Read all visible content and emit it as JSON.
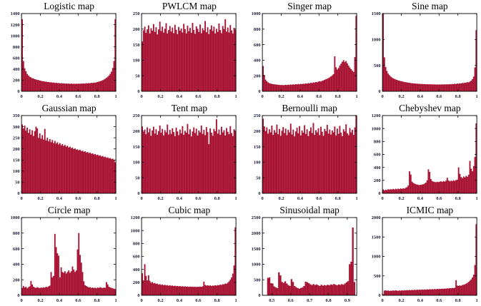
{
  "figure": {
    "background": "#ffffff",
    "bar_color": "#A91535",
    "axis_color": "#000000",
    "label_color": "#202038",
    "grid": false,
    "legend": false
  },
  "chart_data": [
    {
      "type": "bar",
      "title": "Logistic map",
      "xlim": [
        0,
        1
      ],
      "ylim": [
        0,
        1400
      ],
      "x_ticks": [
        0,
        0.2,
        0.4,
        0.6,
        0.8,
        1
      ],
      "x_tick_labels": [
        "0",
        "0.2",
        "0.4",
        "0.6",
        "0.8",
        "1"
      ],
      "y_ticks": [
        0,
        200,
        400,
        600,
        800,
        1000,
        1200,
        1400
      ],
      "y_tick_labels": [
        "0",
        "200",
        "400",
        "600",
        "800",
        "1000",
        "1200",
        "1400"
      ],
      "values": [
        1300,
        545,
        415,
        360,
        312,
        285,
        262,
        250,
        236,
        230,
        218,
        214,
        204,
        202,
        192,
        190,
        182,
        181,
        174,
        174,
        167,
        168,
        161,
        163,
        156,
        158,
        151,
        154,
        147,
        150,
        144,
        147,
        141,
        144,
        138,
        142,
        136,
        140,
        134,
        139,
        133,
        138,
        133,
        138,
        134,
        139,
        135,
        141,
        137,
        143,
        139,
        146,
        142,
        149,
        145,
        153,
        149,
        157,
        153,
        162,
        168,
        175,
        182,
        190,
        200,
        212,
        226,
        243,
        262,
        285,
        315,
        355,
        420,
        545,
        1300
      ]
    },
    {
      "type": "bar",
      "title": "PWLCM map",
      "xlim": [
        0,
        1
      ],
      "ylim": [
        0,
        250
      ],
      "x_ticks": [
        0,
        0.2,
        0.4,
        0.6,
        0.8,
        1
      ],
      "x_tick_labels": [
        "0",
        "0.2",
        "0.4",
        "0.6",
        "0.8",
        "1"
      ],
      "y_ticks": [
        0,
        50,
        100,
        150,
        200,
        250
      ],
      "y_tick_labels": [
        "0",
        "50",
        "100",
        "150",
        "200",
        "250"
      ],
      "values": [
        160,
        196,
        208,
        188,
        199,
        212,
        186,
        203,
        195,
        216,
        191,
        206,
        183,
        199,
        224,
        194,
        208,
        189,
        201,
        219,
        186,
        197,
        210,
        192,
        205,
        187,
        214,
        198,
        184,
        207,
        195,
        202,
        189,
        217,
        200,
        186,
        211,
        193,
        204,
        188,
        220,
        197,
        185,
        209,
        201,
        191,
        215,
        187,
        203,
        196,
        226,
        190,
        206,
        184,
        199,
        212,
        194,
        208,
        186,
        201,
        191,
        218,
        197,
        187,
        210,
        200,
        232,
        192,
        205,
        189,
        213,
        196,
        186,
        204,
        198
      ]
    },
    {
      "type": "bar",
      "title": "Singer map",
      "xlim": [
        0,
        1
      ],
      "ylim": [
        0,
        1000
      ],
      "x_ticks": [
        0,
        0.2,
        0.4,
        0.6,
        0.8,
        1
      ],
      "x_tick_labels": [
        "0",
        "0.2",
        "0.4",
        "0.6",
        "0.8",
        "1"
      ],
      "y_ticks": [
        0,
        200,
        400,
        600,
        800,
        1000
      ],
      "y_tick_labels": [
        "0",
        "200",
        "400",
        "600",
        "800",
        "1000"
      ],
      "values": [
        325,
        210,
        150,
        130,
        115,
        105,
        100,
        95,
        92,
        90,
        88,
        85,
        84,
        82,
        80,
        82,
        78,
        80,
        84,
        80,
        85,
        82,
        88,
        84,
        90,
        86,
        92,
        88,
        94,
        90,
        96,
        92,
        98,
        95,
        102,
        98,
        106,
        102,
        110,
        106,
        115,
        112,
        120,
        116,
        125,
        130,
        126,
        135,
        140,
        148,
        155,
        162,
        170,
        180,
        192,
        205,
        220,
        450,
        310,
        280,
        300,
        330,
        355,
        380,
        400,
        375,
        390,
        360,
        330,
        305,
        285,
        265,
        250,
        440,
        970
      ]
    },
    {
      "type": "bar",
      "title": "Sine map",
      "xlim": [
        0,
        1
      ],
      "ylim": [
        0,
        1500
      ],
      "x_ticks": [
        0,
        0.2,
        0.4,
        0.6,
        0.8,
        1
      ],
      "x_tick_labels": [
        "0",
        "0.2",
        "0.4",
        "0.6",
        "0.8",
        "1"
      ],
      "y_ticks": [
        0,
        500,
        1000,
        1500
      ],
      "y_tick_labels": [
        "0",
        "500",
        "1000",
        "1500"
      ],
      "values": [
        1500,
        655,
        470,
        392,
        342,
        312,
        286,
        266,
        250,
        240,
        228,
        220,
        210,
        204,
        196,
        192,
        184,
        180,
        175,
        172,
        166,
        164,
        158,
        157,
        152,
        152,
        147,
        148,
        143,
        145,
        140,
        142,
        137,
        140,
        135,
        138,
        133,
        136,
        132,
        135,
        131,
        134,
        130,
        133,
        130,
        133,
        130,
        134,
        131,
        135,
        132,
        137,
        133,
        139,
        135,
        142,
        138,
        146,
        141,
        150,
        146,
        155,
        151,
        161,
        157,
        168,
        164,
        177,
        173,
        188,
        205,
        235,
        285,
        460,
        1180
      ]
    },
    {
      "type": "bar",
      "title": "Gaussian map",
      "xlim": [
        0,
        1
      ],
      "ylim": [
        0,
        350
      ],
      "x_ticks": [
        0,
        0.2,
        0.4,
        0.6,
        0.8,
        1
      ],
      "x_tick_labels": [
        "0",
        "0.2",
        "0.4",
        "0.6",
        "0.8",
        "1"
      ],
      "y_ticks": [
        0,
        50,
        100,
        150,
        200,
        250,
        300,
        350
      ],
      "y_tick_labels": [
        "0",
        "50",
        "100",
        "150",
        "200",
        "250",
        "300",
        "350"
      ],
      "values": [
        310,
        292,
        305,
        282,
        296,
        272,
        288,
        264,
        284,
        258,
        280,
        300,
        292,
        250,
        270,
        246,
        262,
        242,
        290,
        238,
        250,
        234,
        244,
        230,
        240,
        226,
        236,
        224,
        230,
        220,
        226,
        216,
        222,
        213,
        218,
        210,
        214,
        206,
        210,
        203,
        206,
        199,
        202,
        196,
        198,
        193,
        196,
        190,
        192,
        187,
        189,
        184,
        186,
        181,
        183,
        178,
        180,
        175,
        177,
        172,
        174,
        169,
        171,
        166,
        168,
        163,
        165,
        160,
        162,
        157,
        159,
        154,
        156,
        150,
        140
      ]
    },
    {
      "type": "bar",
      "title": "Tent map",
      "xlim": [
        0,
        1
      ],
      "ylim": [
        0,
        250
      ],
      "x_ticks": [
        0,
        0.2,
        0.4,
        0.6,
        0.8,
        1
      ],
      "x_tick_labels": [
        "0",
        "0.2",
        "0.4",
        "0.6",
        "0.8",
        "1"
      ],
      "y_ticks": [
        0,
        50,
        100,
        150,
        200,
        250
      ],
      "y_tick_labels": [
        "0",
        "50",
        "100",
        "150",
        "200",
        "250"
      ],
      "values": [
        215,
        198,
        205,
        190,
        212,
        196,
        208,
        185,
        202,
        214,
        192,
        206,
        188,
        200,
        218,
        195,
        207,
        186,
        203,
        196,
        221,
        189,
        204,
        191,
        209,
        197,
        184,
        211,
        199,
        187,
        205,
        193,
        216,
        188,
        201,
        195,
        223,
        190,
        206,
        183,
        199,
        212,
        194,
        208,
        186,
        202,
        196,
        218,
        191,
        204,
        187,
        213,
        197,
        158,
        209,
        195,
        185,
        207,
        200,
        238,
        192,
        205,
        188,
        214,
        196,
        203,
        186,
        210,
        198,
        190,
        216,
        194,
        184,
        206,
        199
      ]
    },
    {
      "type": "bar",
      "title": "Bernoulli map",
      "xlim": [
        0,
        1
      ],
      "ylim": [
        0,
        250
      ],
      "x_ticks": [
        0,
        0.2,
        0.4,
        0.6,
        0.8,
        1
      ],
      "x_tick_labels": [
        "0",
        "0.2",
        "0.4",
        "0.6",
        "0.8",
        "1"
      ],
      "y_ticks": [
        0,
        50,
        100,
        150,
        200,
        250
      ],
      "y_tick_labels": [
        "0",
        "50",
        "100",
        "150",
        "200",
        "250"
      ],
      "values": [
        240,
        215,
        200,
        212,
        192,
        206,
        196,
        218,
        188,
        203,
        195,
        221,
        190,
        207,
        185,
        201,
        213,
        194,
        208,
        187,
        204,
        196,
        224,
        189,
        205,
        183,
        199,
        211,
        193,
        216,
        186,
        202,
        195,
        219,
        191,
        206,
        184,
        200,
        212,
        194,
        226,
        188,
        203,
        196,
        209,
        187,
        214,
        198,
        185,
        207,
        200,
        220,
        192,
        205,
        189,
        202,
        196,
        215,
        186,
        208,
        191,
        217,
        195,
        184,
        206,
        199,
        222,
        193,
        187,
        210,
        196,
        204,
        188,
        212,
        250
      ]
    },
    {
      "type": "bar",
      "title": "Chebyshev map",
      "xlim": [
        0,
        1
      ],
      "ylim": [
        0,
        1200
      ],
      "x_ticks": [
        0,
        0.2,
        0.4,
        0.6,
        0.8,
        1
      ],
      "x_tick_labels": [
        "0",
        "0.2",
        "0.4",
        "0.6",
        "0.8",
        "1"
      ],
      "y_ticks": [
        0,
        200,
        400,
        600,
        800,
        1000,
        1200
      ],
      "y_tick_labels": [
        "0",
        "200",
        "400",
        "600",
        "800",
        "1000",
        "1200"
      ],
      "values": [
        60,
        45,
        55,
        50,
        62,
        55,
        65,
        58,
        68,
        60,
        70,
        62,
        72,
        65,
        75,
        68,
        78,
        72,
        85,
        95,
        120,
        340,
        290,
        180,
        160,
        150,
        140,
        135,
        130,
        128,
        132,
        135,
        140,
        150,
        165,
        200,
        370,
        330,
        220,
        190,
        180,
        175,
        170,
        178,
        172,
        180,
        185,
        175,
        190,
        180,
        195,
        240,
        200,
        185,
        195,
        188,
        200,
        192,
        205,
        210,
        400,
        300,
        250,
        235,
        260,
        245,
        270,
        255,
        285,
        500,
        380,
        340,
        420,
        560,
        1080
      ]
    },
    {
      "type": "bar",
      "title": "Circle map",
      "xlim": [
        0,
        1
      ],
      "ylim": [
        0,
        1000
      ],
      "x_ticks": [
        0,
        0.2,
        0.4,
        0.6,
        0.8,
        1
      ],
      "x_tick_labels": [
        "0",
        "0.2",
        "0.4",
        "0.6",
        "0.8",
        "1"
      ],
      "y_ticks": [
        0,
        200,
        400,
        600,
        800,
        1000
      ],
      "y_tick_labels": [
        "0",
        "200",
        "400",
        "600",
        "800",
        "1000"
      ],
      "values": [
        95,
        120,
        100,
        110,
        90,
        105,
        115,
        185,
        140,
        110,
        100,
        95,
        105,
        98,
        92,
        100,
        96,
        104,
        98,
        110,
        105,
        115,
        125,
        300,
        230,
        250,
        790,
        620,
        540,
        510,
        230,
        360,
        300,
        290,
        310,
        280,
        300,
        320,
        290,
        310,
        370,
        330,
        300,
        320,
        590,
        800,
        520,
        420,
        300,
        180,
        130,
        120,
        110,
        100,
        105,
        95,
        100,
        92,
        98,
        90,
        100,
        95,
        105,
        98,
        92,
        100,
        96,
        170,
        140,
        110,
        100,
        95,
        90,
        85,
        80
      ]
    },
    {
      "type": "bar",
      "title": "Cubic map",
      "xlim": [
        0,
        1
      ],
      "ylim": [
        0,
        1200
      ],
      "x_ticks": [
        0,
        0.2,
        0.4,
        0.6,
        0.8,
        1
      ],
      "x_tick_labels": [
        "0",
        "0.2",
        "0.4",
        "0.6",
        "0.8",
        "1"
      ],
      "y_ticks": [
        0,
        200,
        400,
        600,
        800,
        1000,
        1200
      ],
      "y_tick_labels": [
        "0",
        "200",
        "400",
        "600",
        "800",
        "1000",
        "1200"
      ],
      "values": [
        340,
        230,
        480,
        300,
        230,
        310,
        225,
        195,
        205,
        185,
        190,
        175,
        180,
        165,
        172,
        160,
        168,
        155,
        162,
        152,
        158,
        148,
        155,
        145,
        152,
        142,
        148,
        140,
        145,
        138,
        142,
        136,
        140,
        134,
        138,
        132,
        136,
        130,
        135,
        130,
        134,
        129,
        133,
        128,
        132,
        130,
        135,
        132,
        138,
        210,
        160,
        150,
        155,
        148,
        152,
        145,
        150,
        148,
        155,
        150,
        158,
        155,
        165,
        160,
        172,
        168,
        182,
        178,
        195,
        215,
        240,
        275,
        335,
        460,
        1050
      ]
    },
    {
      "type": "bar",
      "title": "Sinusoidal map",
      "xlim": [
        0.45,
        0.95
      ],
      "ylim": [
        0,
        2500
      ],
      "x_ticks": [
        0.5,
        0.6,
        0.7,
        0.8,
        0.9
      ],
      "x_tick_labels": [
        "0.5",
        "0.6",
        "0.7",
        "0.8",
        "0.9"
      ],
      "y_ticks": [
        0,
        500,
        1000,
        1500,
        2000,
        2500
      ],
      "y_tick_labels": [
        "0",
        "500",
        "1000",
        "1500",
        "2000",
        "2500"
      ],
      "values": [
        0,
        0,
        0,
        560,
        575,
        390,
        380,
        285,
        255,
        230,
        740,
        640,
        430,
        400,
        450,
        380,
        330,
        300,
        520,
        430,
        300,
        260,
        230,
        215,
        235,
        255,
        300,
        440,
        420,
        390,
        355,
        330,
        360,
        330,
        350,
        325,
        300,
        340,
        310,
        330,
        315,
        340,
        320,
        350,
        335,
        365,
        340,
        320,
        350,
        335,
        360,
        340,
        380,
        420,
        455,
        1000,
        1080,
        2180,
        430,
        0
      ]
    },
    {
      "type": "bar",
      "title": "ICMIC map",
      "xlim": [
        0,
        1
      ],
      "ylim": [
        0,
        2000
      ],
      "x_ticks": [
        0,
        0.2,
        0.4,
        0.6,
        0.8,
        1
      ],
      "x_tick_labels": [
        "0",
        "0.2",
        "0.4",
        "0.6",
        "0.8",
        "1"
      ],
      "y_ticks": [
        0,
        500,
        1000,
        1500,
        2000
      ],
      "y_tick_labels": [
        "0",
        "500",
        "1000",
        "1500",
        "2000"
      ],
      "values": [
        30,
        120,
        130,
        115,
        125,
        110,
        120,
        115,
        125,
        118,
        128,
        120,
        115,
        125,
        118,
        128,
        122,
        132,
        125,
        135,
        128,
        138,
        130,
        140,
        132,
        142,
        135,
        145,
        138,
        148,
        140,
        150,
        142,
        152,
        145,
        155,
        148,
        158,
        150,
        160,
        152,
        162,
        155,
        165,
        158,
        168,
        162,
        172,
        165,
        175,
        170,
        180,
        175,
        185,
        180,
        190,
        185,
        195,
        390,
        250,
        240,
        255,
        245,
        265,
        270,
        285,
        300,
        320,
        345,
        375,
        410,
        460,
        530,
        780,
        1830
      ]
    }
  ]
}
